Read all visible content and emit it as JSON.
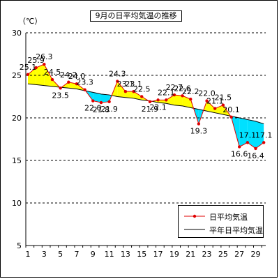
{
  "chart_data": {
    "type": "line",
    "title": "9月の日平均気温の推移",
    "ylabel": "（℃）",
    "xlabel": "",
    "ylim": [
      5,
      30
    ],
    "yticks": [
      5,
      10,
      15,
      20,
      25,
      30
    ],
    "xlim": [
      1,
      30
    ],
    "xticks": [
      1,
      3,
      5,
      7,
      9,
      11,
      13,
      15,
      17,
      19,
      21,
      23,
      25,
      27,
      29
    ],
    "grid": "horizontal-dashed",
    "legend_position": "bottom-right",
    "x": [
      1,
      2,
      3,
      4,
      5,
      6,
      7,
      8,
      9,
      10,
      11,
      12,
      13,
      14,
      15,
      16,
      17,
      18,
      19,
      20,
      21,
      22,
      23,
      24,
      25,
      26,
      27,
      28,
      29,
      30
    ],
    "series": [
      {
        "name": "日平均気温",
        "color": "#e00000",
        "marker": "dot",
        "values": [
          25.1,
          25.9,
          26.3,
          24.5,
          23.5,
          24.2,
          24.0,
          23.3,
          22.0,
          21.8,
          21.9,
          24.3,
          23.1,
          23.1,
          22.5,
          21.9,
          22.1,
          22.1,
          22.7,
          22.6,
          22.2,
          19.3,
          22.0,
          21.1,
          21.5,
          20.1,
          16.6,
          17.1,
          16.4,
          17.1
        ]
      },
      {
        "name": "平年日平均気温",
        "color": "#000000",
        "marker": "none",
        "values": [
          24.0,
          23.9,
          23.8,
          23.7,
          23.6,
          23.5,
          23.4,
          23.2,
          23.0,
          22.8,
          22.7,
          22.5,
          22.4,
          22.3,
          22.1,
          22.0,
          21.8,
          21.7,
          21.5,
          21.4,
          21.2,
          21.0,
          20.8,
          20.6,
          20.4,
          20.2,
          20.0,
          19.8,
          19.6,
          19.3
        ]
      }
    ],
    "data_labels": [
      "25.1",
      "25.9",
      "26.3",
      "24.5",
      "23.5",
      "24.2",
      "24.0",
      "23.3",
      "22.0",
      "21.8",
      "21.9",
      "24.3",
      "23.1",
      "23.1",
      "22.5",
      "21.9",
      "22.1",
      "22.1",
      "22.7",
      "22.6",
      "22.2",
      "19.3",
      "22.0",
      "21.1",
      "21.5",
      "20.1",
      "16.6",
      "17.1",
      "16.4",
      "17.1"
    ],
    "fill_above_color": "#ffff00",
    "fill_below_color": "#00e0ff"
  }
}
